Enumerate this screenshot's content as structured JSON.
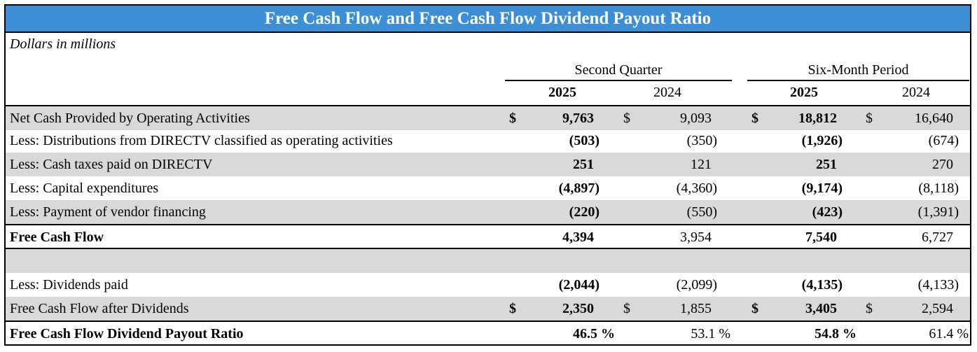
{
  "title": "Free Cash Flow and Free Cash Flow Dividend Payout Ratio",
  "units": "Dollars in millions",
  "headers": {
    "group1": "Second Quarter",
    "group2": "Six-Month Period",
    "y1": "2025",
    "y2": "2024",
    "y3": "2025",
    "y4": "2024"
  },
  "rows": [
    {
      "label": "Net Cash Provided by Operating Activities",
      "c1": "$",
      "v1": "9,763",
      "c2": "$",
      "v2": "9,093",
      "c3": "$",
      "v3": "18,812",
      "c4": "$",
      "v4": "16,640"
    },
    {
      "label": "Less: Distributions from DIRECTV classified as operating activities",
      "c1": "",
      "v1": "(503)",
      "c2": "",
      "v2": "(350)",
      "c3": "",
      "v3": "(1,926)",
      "c4": "",
      "v4": "(674)"
    },
    {
      "label": "Less: Cash taxes paid on DIRECTV",
      "c1": "",
      "v1": "251",
      "c2": "",
      "v2": "121",
      "c3": "",
      "v3": "251",
      "c4": "",
      "v4": "270"
    },
    {
      "label": "Less: Capital expenditures",
      "c1": "",
      "v1": "(4,897)",
      "c2": "",
      "v2": "(4,360)",
      "c3": "",
      "v3": "(9,174)",
      "c4": "",
      "v4": "(8,118)"
    },
    {
      "label": "Less: Payment of vendor financing",
      "c1": "",
      "v1": "(220)",
      "c2": "",
      "v2": "(550)",
      "c3": "",
      "v3": "(423)",
      "c4": "",
      "v4": "(1,391)"
    },
    {
      "label": "Free Cash Flow",
      "c1": "",
      "v1": "4,394",
      "c2": "",
      "v2": "3,954",
      "c3": "",
      "v3": "7,540",
      "c4": "",
      "v4": "6,727"
    },
    {
      "label": "",
      "c1": "",
      "v1": "",
      "c2": "",
      "v2": "",
      "c3": "",
      "v3": "",
      "c4": "",
      "v4": ""
    },
    {
      "label": "Less: Dividends paid",
      "c1": "",
      "v1": "(2,044)",
      "c2": "",
      "v2": "(2,099)",
      "c3": "",
      "v3": "(4,135)",
      "c4": "",
      "v4": "(4,133)"
    },
    {
      "label": "Free Cash Flow after Dividends",
      "c1": "$",
      "v1": "2,350",
      "c2": "$",
      "v2": "1,855",
      "c3": "$",
      "v3": "3,405",
      "c4": "$",
      "v4": "2,594"
    },
    {
      "label": "Free Cash Flow Dividend Payout Ratio",
      "c1": "",
      "v1": "46.5 %",
      "c2": "",
      "v2": "53.1 %",
      "c3": "",
      "v3": "54.8 %",
      "c4": "",
      "v4": "61.4 %"
    }
  ]
}
